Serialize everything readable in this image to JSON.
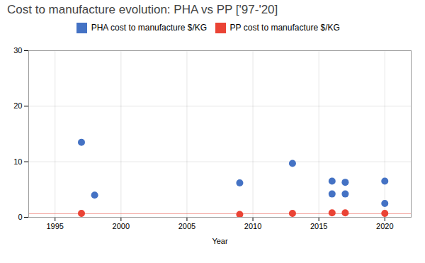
{
  "chart_data": {
    "type": "scatter",
    "title": "Cost to manufacture evolution: PHA vs PP ['97-'20]",
    "xlabel": "Year",
    "series": [
      {
        "name": "PHA cost to manufacture $/KG",
        "color": "#4472C4",
        "x": [
          1997,
          1998,
          2009,
          2013,
          2016,
          2016,
          2017,
          2017,
          2020,
          2020
        ],
        "values": [
          13.5,
          4.0,
          6.2,
          9.7,
          6.5,
          4.2,
          6.3,
          4.2,
          6.5,
          2.5
        ]
      },
      {
        "name": "PP cost to manufacture $/KG",
        "color": "#EA4335",
        "x": [
          1997,
          2009,
          2013,
          2016,
          2017,
          2020
        ],
        "values": [
          0.7,
          0.5,
          0.7,
          0.8,
          0.8,
          0.7
        ],
        "hline": 0.65
      }
    ],
    "xlim": [
      1993,
      2022
    ],
    "xticks": [
      1995,
      2000,
      2005,
      2010,
      2015,
      2020
    ],
    "ylim": [
      0,
      30
    ],
    "yticks": [
      0,
      10,
      20,
      30
    ],
    "grid": true,
    "legend": "top"
  }
}
